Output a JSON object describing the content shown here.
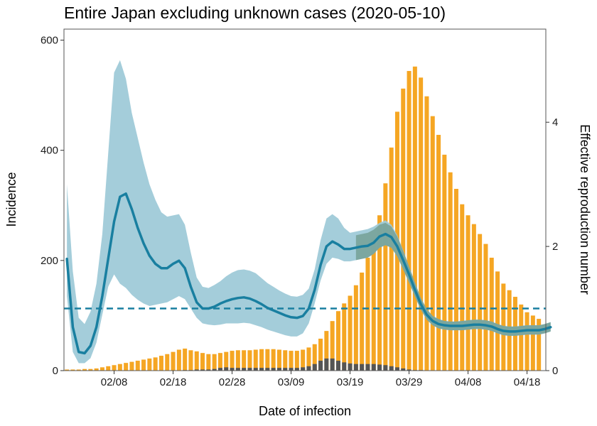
{
  "chart_data": {
    "type": "bar",
    "title": "Entire Japan excluding unknown cases (2020-05-10)",
    "xlabel": "Date of infection",
    "ylabel": "Incidence",
    "y2label": "Effective reproduction number",
    "x_start": "2020-01-31",
    "x_ticks": [
      "02/08",
      "02/18",
      "02/28",
      "03/09",
      "03/19",
      "03/29",
      "04/08",
      "04/18"
    ],
    "ylim": [
      0,
      620
    ],
    "y_ticks": [
      0,
      200,
      400,
      600
    ],
    "y2lim": [
      0,
      5.5
    ],
    "y2_ticks": [
      0,
      2,
      4
    ],
    "grid": false,
    "colors": {
      "incidence_bar": "#f5a623",
      "imported_bar": "#555555",
      "rt_line": "#197fa0",
      "rt_band_outer": "#9fcad8",
      "rt_band_inner": "#6f9a8c",
      "threshold_line": "#197fa0"
    },
    "series": [
      {
        "kind": "bar",
        "values": [
          2,
          2,
          2,
          3,
          3,
          4,
          6,
          8,
          10,
          12,
          14,
          16,
          18,
          20,
          22,
          24,
          27,
          30,
          34,
          38,
          40,
          37,
          35,
          32,
          30,
          30,
          32,
          34,
          36,
          37,
          37,
          37,
          38,
          39,
          39,
          39,
          38,
          37,
          36,
          36,
          38,
          42,
          48,
          58,
          72,
          90,
          108,
          122,
          136,
          155,
          178,
          205,
          240,
          282,
          340,
          405,
          470,
          512,
          544,
          552,
          532,
          498,
          462,
          428,
          392,
          360,
          330,
          302,
          282,
          266,
          248,
          230,
          205,
          180,
          158,
          146,
          134,
          120,
          106,
          100,
          94
        ]
      },
      {
        "kind": "bar",
        "values": [
          0,
          0,
          0,
          0,
          0,
          0,
          0,
          0,
          0,
          0,
          0,
          0,
          0,
          0,
          0,
          0,
          0,
          0,
          0,
          0,
          1,
          1,
          2,
          2,
          2,
          3,
          5,
          6,
          5,
          5,
          5,
          5,
          5,
          5,
          5,
          5,
          5,
          5,
          5,
          5,
          6,
          8,
          12,
          18,
          22,
          22,
          18,
          15,
          13,
          12,
          12,
          12,
          12,
          11,
          10,
          8,
          6,
          4,
          2,
          1,
          1,
          0,
          0,
          0,
          0,
          0,
          0,
          0,
          0,
          0,
          0,
          0,
          0,
          0,
          0,
          0,
          0,
          0,
          0,
          0,
          0
        ]
      },
      {
        "kind": "line",
        "x": [
          0,
          1,
          2,
          3,
          4,
          5,
          6,
          7,
          8,
          9,
          10,
          11,
          12,
          13,
          14,
          15,
          16,
          17,
          18,
          19,
          20,
          21,
          22,
          23,
          24,
          25,
          26,
          27,
          28,
          29,
          30,
          31,
          32,
          33,
          34,
          35,
          36,
          37,
          38,
          39,
          40,
          41,
          42,
          43,
          44,
          45,
          46,
          47,
          48,
          49,
          50,
          51,
          52,
          53,
          54,
          55,
          56,
          57,
          58,
          59,
          60,
          61,
          62,
          63,
          64,
          65,
          66,
          67,
          68,
          69,
          70,
          71,
          72,
          73,
          74,
          75,
          76,
          77,
          78,
          79,
          80,
          81,
          82
        ],
        "y": [
          1.8,
          0.7,
          0.3,
          0.28,
          0.4,
          0.7,
          1.2,
          1.8,
          2.4,
          2.8,
          2.85,
          2.6,
          2.3,
          2.05,
          1.85,
          1.72,
          1.65,
          1.65,
          1.72,
          1.77,
          1.65,
          1.35,
          1.1,
          1.0,
          1.0,
          1.03,
          1.08,
          1.12,
          1.15,
          1.17,
          1.18,
          1.16,
          1.12,
          1.07,
          1.01,
          0.97,
          0.93,
          0.89,
          0.86,
          0.85,
          0.88,
          1.0,
          1.3,
          1.7,
          2.0,
          2.08,
          2.03,
          1.96,
          1.96,
          1.98,
          2.0,
          2.01,
          2.06,
          2.16,
          2.2,
          2.15,
          2.0,
          1.78,
          1.55,
          1.3,
          1.07,
          0.9,
          0.8,
          0.75,
          0.73,
          0.72,
          0.72,
          0.72,
          0.73,
          0.74,
          0.74,
          0.73,
          0.71,
          0.67,
          0.64,
          0.63,
          0.63,
          0.64,
          0.65,
          0.65,
          0.65,
          0.67,
          0.7
        ]
      }
    ],
    "rt_band_outer_lower": [
      1.2,
      0.3,
      0.12,
      0.12,
      0.2,
      0.45,
      0.9,
      1.35,
      1.55,
      1.4,
      1.33,
      1.22,
      1.14,
      1.08,
      1.04,
      1.06,
      1.08,
      1.1,
      1.15,
      1.2,
      1.15,
      1.0,
      0.85,
      0.76,
      0.74,
      0.73,
      0.74,
      0.76,
      0.76,
      0.76,
      0.77,
      0.76,
      0.73,
      0.7,
      0.66,
      0.63,
      0.6,
      0.57,
      0.55,
      0.55,
      0.6,
      0.76,
      1.08,
      1.45,
      1.72,
      1.82,
      1.8,
      1.76,
      1.76,
      1.78,
      1.8,
      1.82,
      1.88,
      1.98,
      2.02,
      1.98,
      1.84,
      1.63,
      1.42,
      1.19,
      0.98,
      0.82,
      0.73,
      0.68,
      0.66,
      0.65,
      0.65,
      0.65,
      0.66,
      0.67,
      0.67,
      0.66,
      0.64,
      0.6,
      0.57,
      0.56,
      0.56,
      0.57,
      0.58,
      0.58,
      0.58,
      0.6,
      0.63
    ],
    "rt_band_outer_upper": [
      3.0,
      1.6,
      0.85,
      0.75,
      0.95,
      1.4,
      2.2,
      3.5,
      4.8,
      5.0,
      4.7,
      4.15,
      3.75,
      3.35,
      3.0,
      2.75,
      2.55,
      2.48,
      2.5,
      2.52,
      2.35,
      1.9,
      1.5,
      1.35,
      1.33,
      1.38,
      1.44,
      1.52,
      1.58,
      1.62,
      1.63,
      1.61,
      1.57,
      1.49,
      1.41,
      1.35,
      1.29,
      1.24,
      1.2,
      1.19,
      1.22,
      1.32,
      1.63,
      2.1,
      2.45,
      2.52,
      2.45,
      2.3,
      2.22,
      2.24,
      2.26,
      2.28,
      2.32,
      2.38,
      2.42,
      2.35,
      2.18,
      1.94,
      1.68,
      1.42,
      1.17,
      0.99,
      0.88,
      0.83,
      0.8,
      0.79,
      0.79,
      0.8,
      0.81,
      0.82,
      0.82,
      0.81,
      0.79,
      0.75,
      0.72,
      0.71,
      0.71,
      0.72,
      0.73,
      0.73,
      0.73,
      0.75,
      0.78
    ],
    "rt_band_inner_lower": [
      null,
      null,
      null,
      null,
      null,
      null,
      null,
      null,
      null,
      null,
      null,
      null,
      null,
      null,
      null,
      null,
      null,
      null,
      null,
      null,
      null,
      null,
      null,
      null,
      null,
      null,
      null,
      null,
      null,
      null,
      null,
      null,
      null,
      null,
      null,
      null,
      null,
      null,
      null,
      null,
      null,
      null,
      null,
      null,
      null,
      null,
      null,
      null,
      null,
      1.78,
      1.8,
      1.82,
      1.88,
      1.98,
      2.02,
      1.98,
      1.84,
      1.63,
      1.42,
      1.19,
      0.98,
      0.82,
      0.73,
      0.68,
      0.66,
      0.65,
      0.65,
      0.65,
      0.66,
      0.67,
      0.67,
      0.66,
      0.64,
      0.6,
      0.57,
      0.56,
      0.56,
      0.57,
      0.58,
      0.58,
      0.58,
      0.6,
      0.63
    ],
    "rt_band_inner_upper": [
      null,
      null,
      null,
      null,
      null,
      null,
      null,
      null,
      null,
      null,
      null,
      null,
      null,
      null,
      null,
      null,
      null,
      null,
      null,
      null,
      null,
      null,
      null,
      null,
      null,
      null,
      null,
      null,
      null,
      null,
      null,
      null,
      null,
      null,
      null,
      null,
      null,
      null,
      null,
      null,
      null,
      null,
      null,
      null,
      null,
      null,
      null,
      null,
      null,
      2.18,
      2.2,
      2.22,
      2.27,
      2.35,
      2.38,
      2.32,
      2.16,
      1.93,
      1.68,
      1.42,
      1.17,
      0.99,
      0.88,
      0.83,
      0.8,
      0.79,
      0.79,
      0.8,
      0.81,
      0.82,
      0.82,
      0.81,
      0.79,
      0.75,
      0.72,
      0.71,
      0.71,
      0.72,
      0.73,
      0.73,
      0.73,
      0.75,
      0.78
    ],
    "threshold": 1.0
  }
}
